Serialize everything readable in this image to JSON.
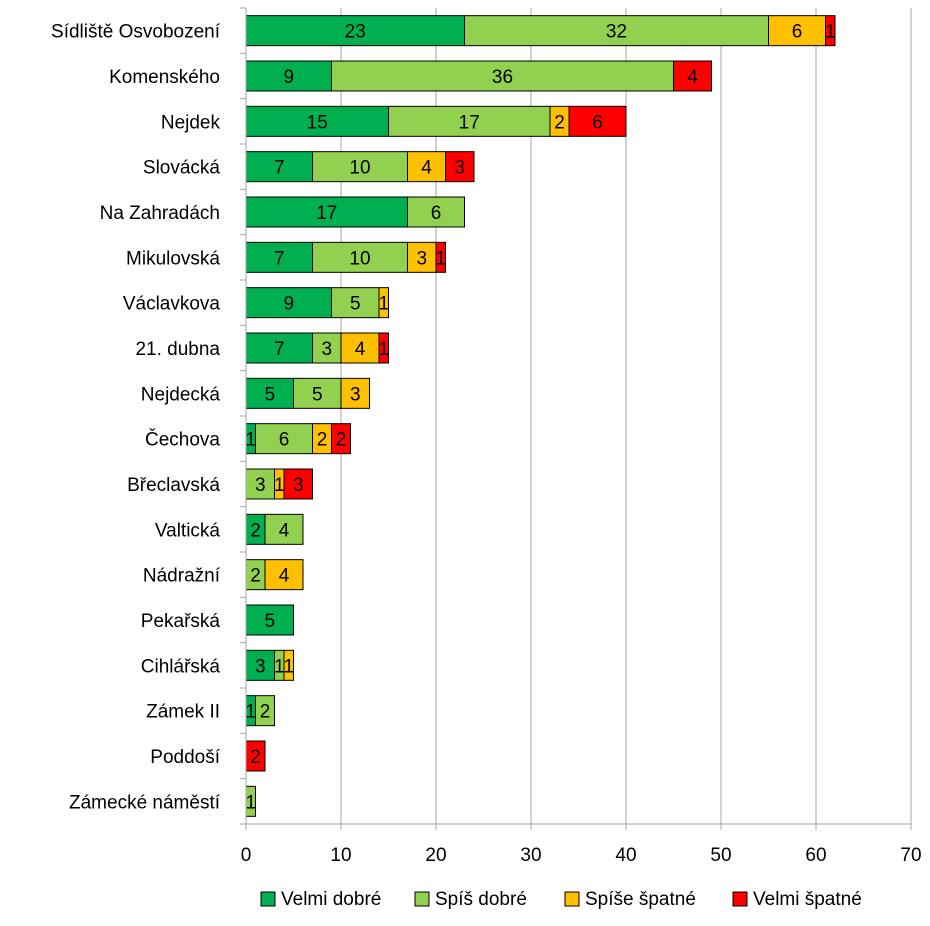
{
  "chart_data": {
    "type": "bar",
    "orientation": "horizontal",
    "stacked": true,
    "categories": [
      "Sídliště Osvobození",
      "Komenského",
      "Nejdek",
      "Slovácká",
      "Na Zahradách",
      "Mikulovská",
      "Václavkova",
      "21. dubna",
      "Nejdecká",
      "Čechova",
      "Břeclavská",
      "Valtická",
      "Nádražní",
      "Pekařská",
      "Cihlářská",
      "Zámek II",
      "Poddoší",
      "Zámecké náměstí"
    ],
    "series": [
      {
        "name": "Velmi dobré",
        "color": "#00b050",
        "values": [
          23,
          9,
          15,
          7,
          17,
          7,
          9,
          7,
          5,
          1,
          0,
          2,
          0,
          5,
          3,
          1,
          0,
          0
        ]
      },
      {
        "name": "Spíš dobré",
        "color": "#92d050",
        "values": [
          32,
          36,
          17,
          10,
          6,
          10,
          5,
          3,
          5,
          6,
          3,
          4,
          2,
          0,
          1,
          2,
          0,
          1
        ]
      },
      {
        "name": "Spíše špatné",
        "color": "#ffc000",
        "values": [
          6,
          0,
          2,
          4,
          0,
          3,
          1,
          4,
          3,
          2,
          1,
          0,
          4,
          0,
          1,
          0,
          0,
          0
        ]
      },
      {
        "name": "Velmi špatné",
        "color": "#ff0000",
        "values": [
          1,
          4,
          6,
          3,
          0,
          1,
          0,
          1,
          0,
          2,
          3,
          0,
          0,
          0,
          0,
          0,
          2,
          0
        ]
      }
    ],
    "xlim": [
      0,
      70
    ],
    "xticks": [
      0,
      10,
      20,
      30,
      40,
      50,
      60,
      70
    ],
    "grid": "vertical",
    "legend": "bottom",
    "data_labels": true
  }
}
